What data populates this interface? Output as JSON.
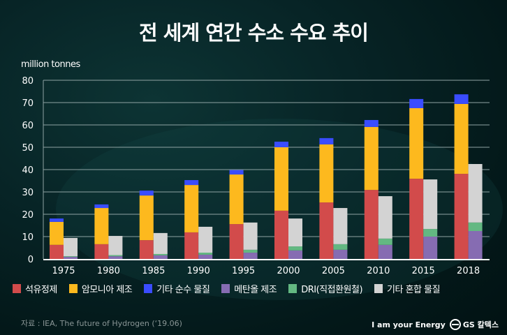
{
  "title": "전 세계 연간 수소 수요 추이",
  "chart_data": {
    "type": "bar",
    "stacked": true,
    "title": "전 세계 연간 수소 수요 추이",
    "ylabel": "million tonnes",
    "ylim": [
      0,
      80
    ],
    "yticks": [
      0,
      10,
      20,
      30,
      40,
      50,
      60,
      70,
      80
    ],
    "grid": true,
    "legend_position": "bottom",
    "categories": [
      "1975",
      "1980",
      "1985",
      "1990",
      "1995",
      "2000",
      "2005",
      "2010",
      "2015",
      "2018"
    ],
    "stacks": [
      {
        "stack": "pure",
        "series": [
          {
            "name": "석유정제",
            "color": "#d24b4b",
            "values": [
              6.3,
              6.6,
              8.4,
              11.9,
              15.6,
              21.6,
              25.3,
              30.9,
              35.9,
              38.1
            ]
          },
          {
            "name": "암모니아 제조",
            "color": "#fdb91e",
            "values": [
              10.3,
              16.2,
              20.0,
              21.2,
              22.2,
              28.4,
              26.0,
              28.2,
              31.6,
              31.3
            ]
          },
          {
            "name": "기타 순수 물질",
            "color": "#3a4cff",
            "values": [
              1.5,
              1.6,
              2.2,
              2.2,
              2.0,
              2.5,
              2.8,
              3.1,
              4.1,
              4.3
            ]
          }
        ]
      },
      {
        "stack": "mixed",
        "series": [
          {
            "name": "메탄올 제조",
            "color": "#866cb2",
            "values": [
              0.9,
              1.2,
              1.6,
              1.9,
              2.8,
              3.8,
              4.1,
              6.3,
              10.0,
              12.5
            ]
          },
          {
            "name": "DRI(직접환원철)",
            "color": "#63b882",
            "values": [
              0.3,
              0.5,
              0.6,
              0.9,
              1.3,
              1.8,
              2.5,
              2.8,
              3.4,
              3.8
            ]
          },
          {
            "name": "기타 혼합 물질",
            "color": "#d3d3d3",
            "values": [
              8.2,
              8.6,
              9.4,
              11.6,
              12.2,
              12.5,
              16.2,
              19.0,
              22.2,
              26.2
            ]
          }
        ]
      }
    ]
  },
  "legend": [
    {
      "label": "석유정제",
      "color": "#d24b4b"
    },
    {
      "label": "암모니아 제조",
      "color": "#fdb91e"
    },
    {
      "label": "기타 순수 물질",
      "color": "#3a4cff"
    },
    {
      "label": "메탄올 제조",
      "color": "#866cb2"
    },
    {
      "label": "DRI(직접환원철)",
      "color": "#63b882"
    },
    {
      "label": "기타 혼합 물질",
      "color": "#d3d3d3"
    }
  ],
  "source": "자료 : IEA, The future of Hydrogen (‘19.06)",
  "brand": {
    "slogan": "I am your Energy",
    "logo_text": "GS 칼텍스"
  }
}
